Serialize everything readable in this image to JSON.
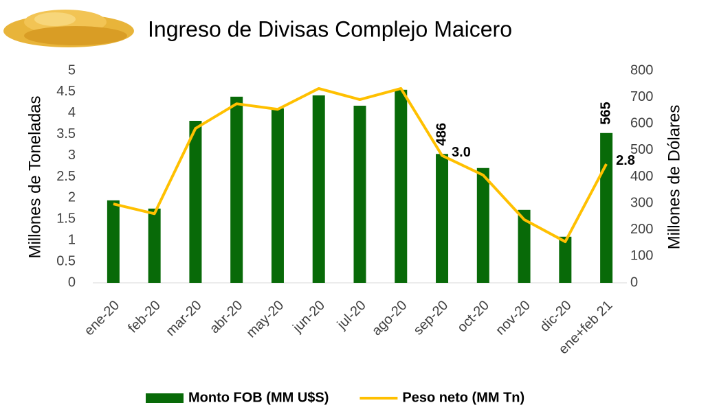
{
  "chart_data": {
    "type": "bar-line",
    "title": "Ingreso de Divisas Complejo Maicero",
    "y_label": "Millones de Toneladas",
    "y2_label": "Millones de Dólares",
    "categories": [
      "ene-20",
      "feb-20",
      "mar-20",
      "abr-20",
      "may-20",
      "jun-20",
      "jul-20",
      "ago-20",
      "sep-20",
      "oct-20",
      "nov-20",
      "dic-20",
      "ene+feb 21"
    ],
    "series": [
      {
        "name": "Monto FOB (MM U$S)",
        "type": "bar",
        "axis": "y2",
        "color": "#086a08",
        "values": [
          311,
          280,
          611,
          702,
          658,
          707,
          668,
          728,
          486,
          433,
          275,
          174,
          565
        ],
        "value_labels": [
          null,
          null,
          null,
          null,
          null,
          null,
          null,
          null,
          "486",
          null,
          null,
          null,
          "565"
        ]
      },
      {
        "name": "Peso neto (MM Tn)",
        "type": "line",
        "color": "#ffc000",
        "values": [
          1.86,
          1.63,
          3.64,
          4.22,
          4.09,
          4.58,
          4.32,
          4.58,
          3.0,
          2.54,
          1.49,
          0.97,
          2.8
        ],
        "value_labels": [
          null,
          null,
          null,
          null,
          null,
          null,
          null,
          null,
          "3.0",
          null,
          null,
          null,
          "2.8"
        ]
      }
    ],
    "ylim": [
      0,
      5
    ],
    "yticks": [
      0,
      0.5,
      1,
      1.5,
      2,
      2.5,
      3,
      3.5,
      4,
      4.5,
      5
    ],
    "y2lim": [
      0,
      800
    ],
    "y2ticks": [
      0,
      100,
      200,
      300,
      400,
      500,
      600,
      700,
      800
    ],
    "grid": false
  }
}
